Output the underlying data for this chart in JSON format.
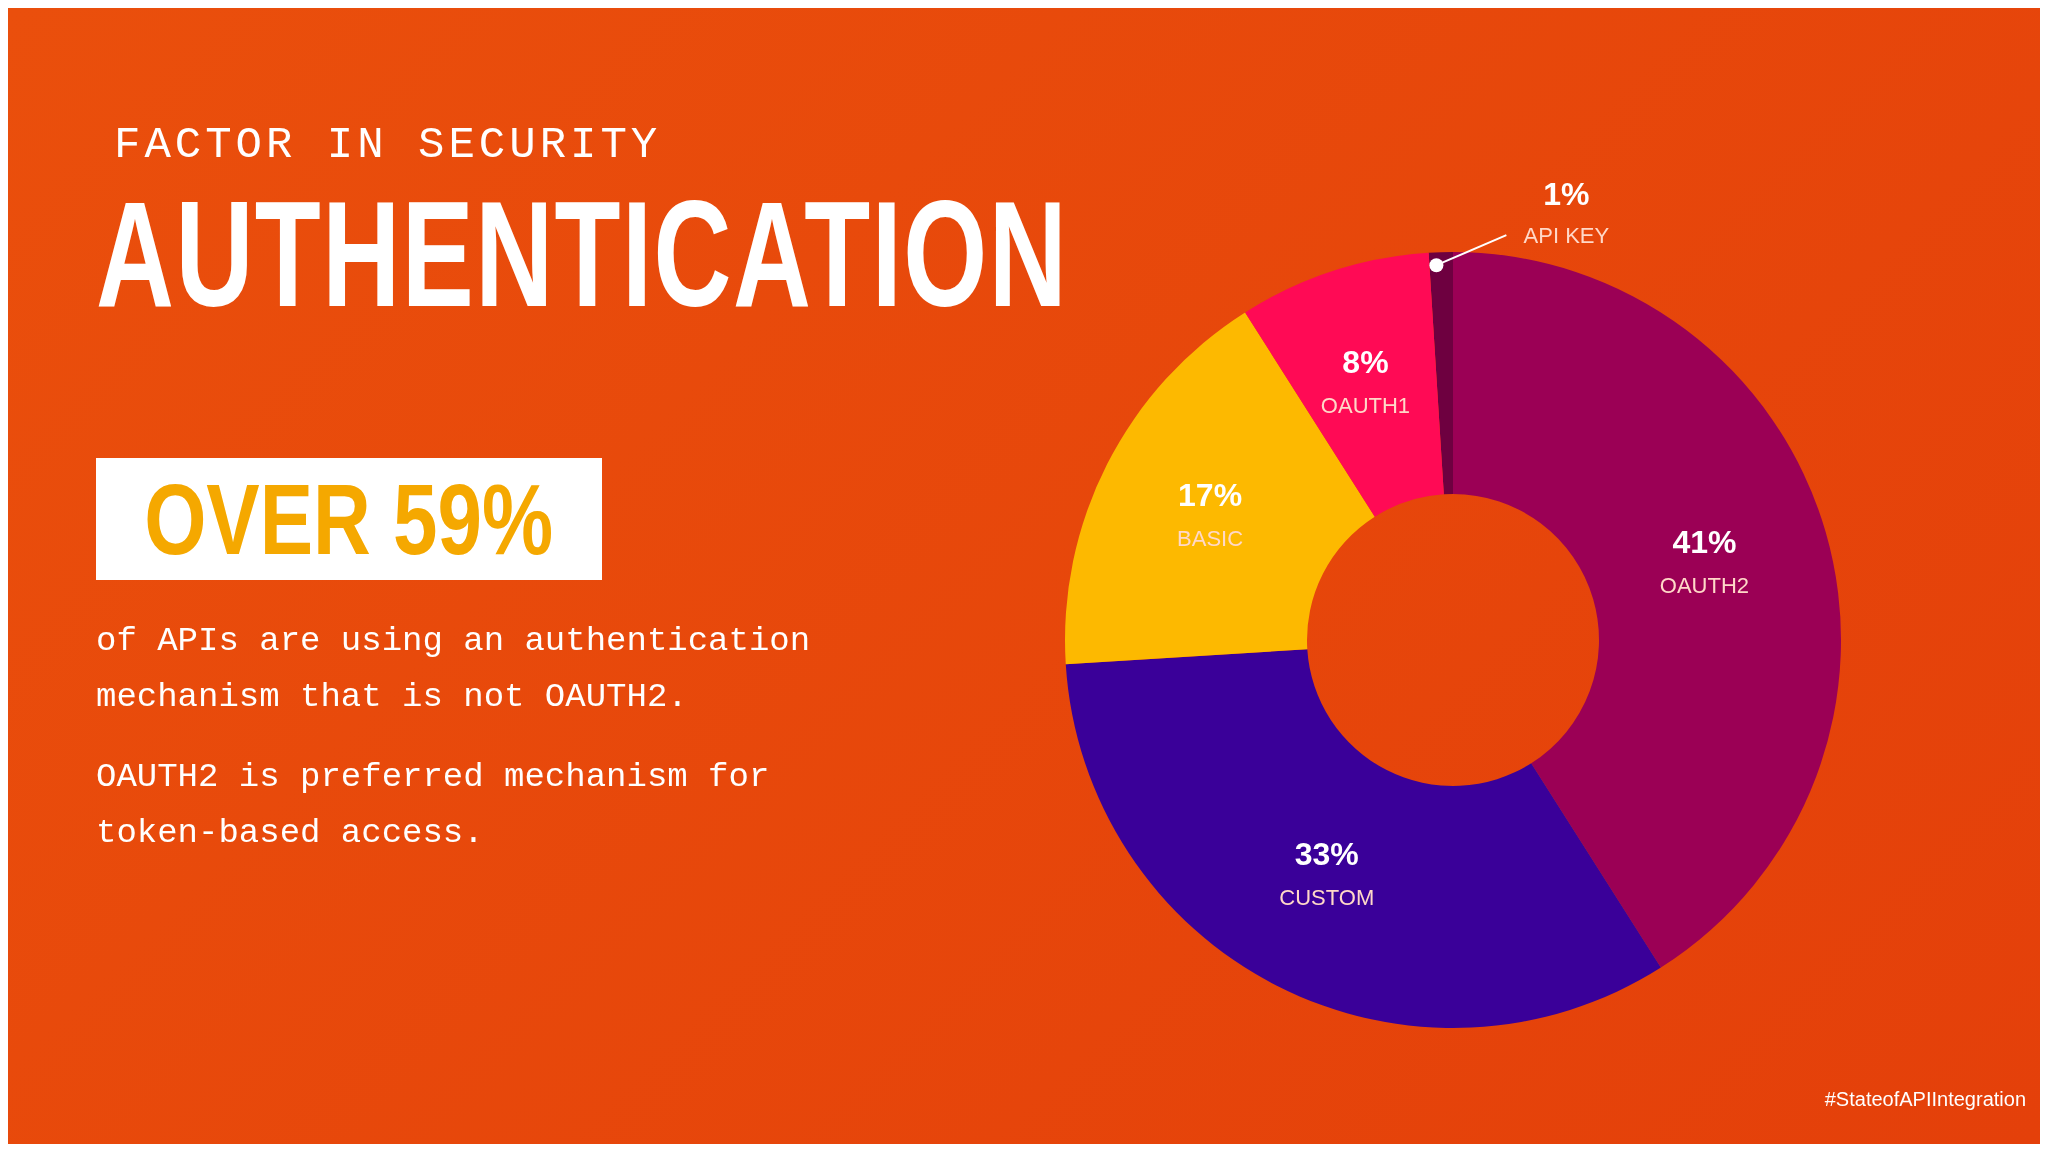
{
  "chart_data": {
    "type": "donut",
    "subtitle": "FACTOR IN SECURITY",
    "title": "AUTHENTICATION",
    "categories": [
      "API KEY",
      "OAUTH2",
      "CUSTOM",
      "BASIC",
      "OAUTH1"
    ],
    "values": [
      1,
      41,
      33,
      17,
      8
    ],
    "colors": [
      "#6e0040",
      "#9b0055",
      "#3a0099",
      "#fdb900",
      "#ff0a55"
    ],
    "value_labels": [
      "1%",
      "41%",
      "33%",
      "17%",
      "8%"
    ],
    "legend": false,
    "annotations": [
      "OVER 59%",
      "of APIs are using an authentication mechanism that is not OAUTH2.",
      "OAUTH2 is preferred mechanism for token-based access.",
      "#StateofAPIIntegration"
    ]
  }
}
